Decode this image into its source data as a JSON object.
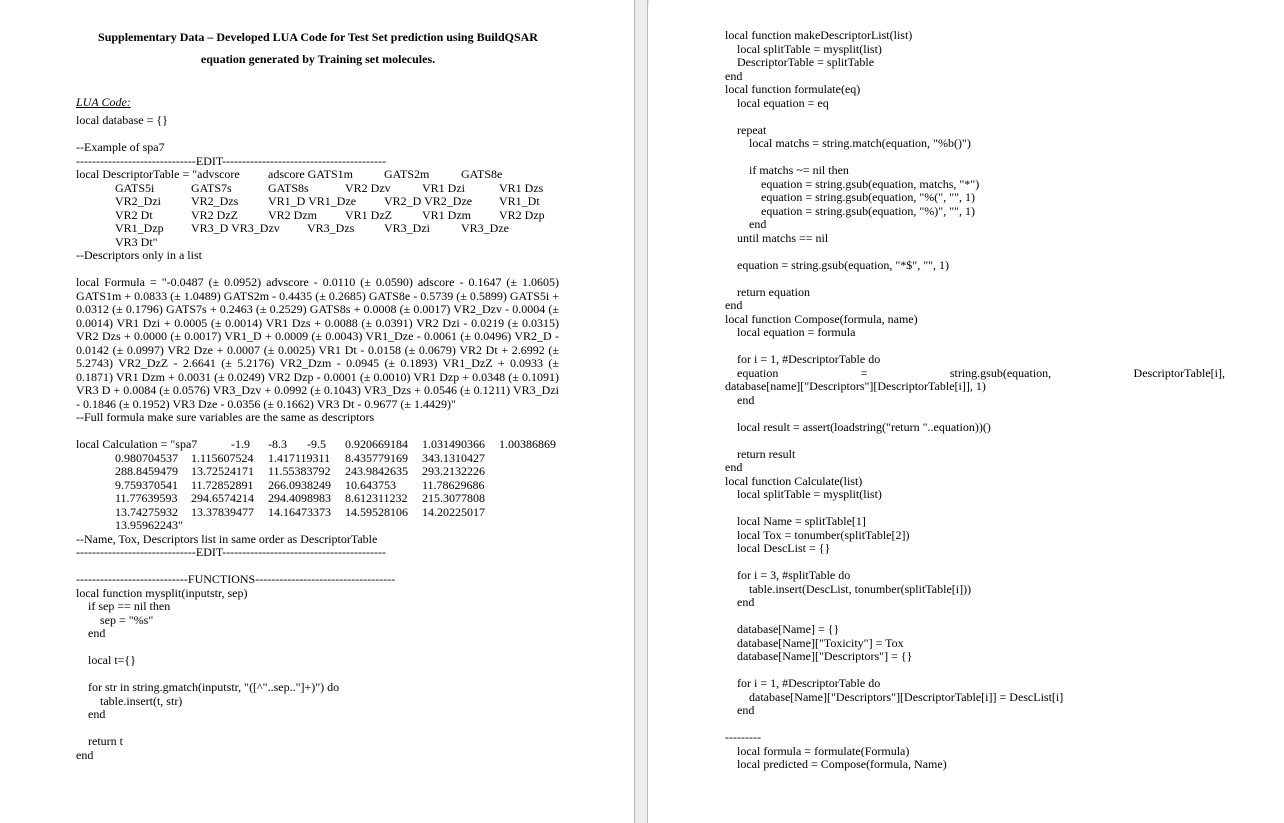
{
  "left_page": {
    "title_line1": "Supplementary Data – Developed LUA Code for Test Set prediction using BuildQSAR",
    "title_line2": "equation generated by Training set molecules.",
    "section_label": "LUA Code:",
    "line_database": "local database = {}",
    "line_example": "--Example of spa7",
    "line_edit": "------------------------------EDIT-----------------------------------------",
    "descriptor_rows": [
      [
        "local DescriptorTable = \"advscore",
        "adscore GATS1m",
        "GATS2m",
        "GATS8e"
      ],
      [
        "GATS5i",
        "GATS7s",
        "GATS8s",
        "VR2 Dzv",
        "VR1 Dzi",
        "VR1 Dzs"
      ],
      [
        "VR2_Dzi",
        "VR2_Dzs",
        "VR1_D VR1_Dze",
        "VR2_D VR2_Dze",
        "VR1_Dt"
      ],
      [
        "VR2 Dt",
        "VR2 DzZ",
        "VR2 Dzm",
        "VR1 DzZ",
        "VR1 Dzm",
        "VR2 Dzp"
      ],
      [
        "VR1_Dzp",
        "VR3_D VR3_Dzv",
        "VR3_Dzs",
        "VR3_Dzi",
        "VR3_Dze"
      ],
      [
        "VR3 Dt\""
      ]
    ],
    "line_descriptors_comment": "--Descriptors only in a list",
    "formula": "local Formula = \"-0.0487 (± 0.0952) advscore - 0.0110 (± 0.0590) adscore - 0.1647 (± 1.0605) GATS1m + 0.0833 (± 1.0489) GATS2m - 0.4435 (± 0.2685) GATS8e - 0.5739 (± 0.5899) GATS5i + 0.0312 (± 0.1796) GATS7s + 0.2463 (± 0.2529) GATS8s + 0.0008 (± 0.0017) VR2_Dzv - 0.0004 (± 0.0014) VR1 Dzi + 0.0005 (± 0.0014) VR1 Dzs + 0.0088 (± 0.0391) VR2 Dzi - 0.0219 (± 0.0315) VR2 Dzs + 0.0000 (± 0.0017) VR1_D + 0.0009 (± 0.0043) VR1_Dze - 0.0061 (± 0.0496) VR2_D - 0.0142 (± 0.0997) VR2 Dze + 0.0007 (± 0.0025) VR1 Dt - 0.0158 (± 0.0679) VR2 Dt + 2.6992 (± 5.2743) VR2_DzZ - 2.6641 (± 5.2176) VR2_Dzm - 0.0945 (± 0.1893) VR1_DzZ + 0.0933 (± 0.1871) VR1 Dzm + 0.0031 (± 0.0249) VR2 Dzp - 0.0001 (± 0.0010) VR1 Dzp + 0.0348 (± 0.1091) VR3 D + 0.0084 (± 0.0576) VR3_Dzv + 0.0992 (± 0.1043) VR3_Dzs + 0.0546 (± 0.1211) VR3_Dzi - 0.1846 (± 0.1952) VR3 Dze - 0.0356 (± 0.1662) VR3 Dt - 0.9677 (± 1.4429)\"",
    "line_formula_comment": "--Full formula make sure variables are the same as descriptors",
    "calculation_rows": [
      [
        "local Calculation = \"spa7",
        "-1.9",
        "-8.3",
        "-9.5",
        "0.920669184",
        "1.031490366",
        "1.00386869"
      ],
      [
        "0.980704537",
        "1.115607524",
        "1.417119311",
        "8.435779169",
        "343.1310427"
      ],
      [
        "288.8459479",
        "13.72524171",
        "11.55383792",
        "243.9842635",
        "293.2132226"
      ],
      [
        "9.759370541",
        "11.72852891",
        "266.0938249",
        "10.643753",
        "11.78629686"
      ],
      [
        "11.77639593",
        "294.6574214",
        "294.4098983",
        "8.612311232",
        "215.3077808"
      ],
      [
        "13.74275932",
        "13.37839477",
        "14.16473373",
        "14.59528106",
        "14.20225017"
      ],
      [
        "13.95962243\""
      ]
    ],
    "line_name_comment": "--Name, Tox, Descriptors list in same order as DescriptorTable",
    "line_edit_end": "------------------------------EDIT-----------------------------------------",
    "functions_lines": [
      "----------------------------FUNCTIONS-----------------------------------",
      "local function mysplit(inputstr, sep)",
      "    if sep == nil then",
      "        sep = \"%s\"",
      "    end",
      "",
      "    local t={}",
      "",
      "    for str in string.gmatch(inputstr, \"([^\"..sep..\"]+)\") do",
      "        table.insert(t, str)",
      "    end",
      "",
      "    return t",
      "end"
    ]
  },
  "right_page": {
    "code_lines": [
      "local function makeDescriptorList(list)",
      "    local splitTable = mysplit(list)",
      "    DescriptorTable = splitTable",
      "end",
      "local function formulate(eq)",
      "    local equation = eq",
      "",
      "    repeat",
      "        local matchs = string.match(equation, \"%b()\")",
      "",
      "        if matchs ~= nil then",
      "            equation = string.gsub(equation, matchs, \"*\")",
      "            equation = string.gsub(equation, \"%(\", \"\", 1)",
      "            equation = string.gsub(equation, \"%)\", \"\", 1)",
      "        end",
      "    until matchs == nil",
      "",
      "    equation = string.gsub(equation, \"*$\", \"\", 1)",
      "",
      "    return equation",
      "end",
      "local function Compose(formula, name)",
      "    local equation = formula",
      "",
      "    for i = 1, #DescriptorTable do",
      "        equation = string.gsub(equation, DescriptorTable[i],",
      "database[name][\"Descriptors\"][DescriptorTable[i]], 1)",
      "    end",
      "",
      "    local result = assert(loadstring(\"return \"..equation))()",
      "",
      "    return result",
      "end",
      "local function Calculate(list)",
      "    local splitTable = mysplit(list)",
      "",
      "    local Name = splitTable[1]",
      "    local Tox = tonumber(splitTable[2])",
      "    local DescList = {}",
      "",
      "    for i = 3, #splitTable do",
      "        table.insert(DescList, tonumber(splitTable[i]))",
      "    end",
      "",
      "    database[Name] = {}",
      "    database[Name][\"Toxicity\"] = Tox",
      "    database[Name][\"Descriptors\"] = {}",
      "",
      "    for i = 1, #DescriptorTable do",
      "        database[Name][\"Descriptors\"][DescriptorTable[i]] = DescList[i]",
      "    end",
      "",
      "---------",
      "    local formula = formulate(Formula)",
      "    local predicted = Compose(formula, Name)"
    ]
  }
}
